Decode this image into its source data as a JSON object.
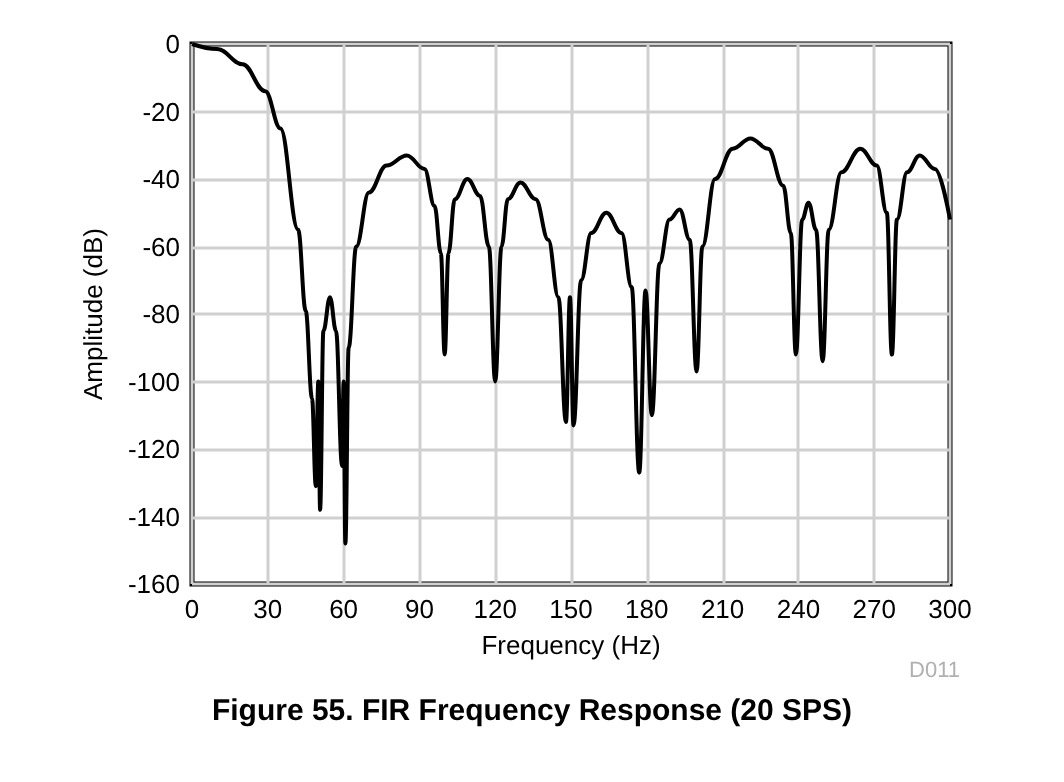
{
  "chart_data": {
    "type": "line",
    "title": "Figure 55. FIR Frequency Response (20 SPS)",
    "xlabel": "Frequency (Hz)",
    "ylabel": "Amplitude (dB)",
    "annotations": [
      "D011"
    ],
    "x": [
      0,
      10,
      20,
      29,
      35,
      42,
      45,
      47.5,
      49,
      50,
      50.7,
      52,
      54.6,
      57,
      59.4,
      60,
      60.7,
      62,
      65,
      70,
      77,
      85,
      92,
      96,
      98.5,
      100,
      101.5,
      104,
      109,
      114,
      117.5,
      120,
      122.5,
      125,
      130,
      136,
      141,
      145,
      148,
      149.6,
      151,
      154,
      158,
      164,
      170,
      174,
      177,
      179.5,
      182,
      185,
      189,
      193,
      197,
      199.7,
      202,
      207,
      214,
      221,
      228,
      234,
      237,
      239,
      241.5,
      244,
      247,
      249.6,
      252,
      257,
      264.5,
      271,
      275,
      277,
      279,
      283,
      288,
      294,
      300
    ],
    "series": [
      {
        "color": "#000000",
        "values": [
          0,
          -1.5,
          -6,
          -14,
          -25,
          -55,
          -79,
          -105,
          -131,
          -100,
          -138,
          -85,
          -75,
          -85,
          -125,
          -100,
          -148,
          -90,
          -60,
          -44,
          -36,
          -33,
          -37,
          -48,
          -62,
          -92,
          -62,
          -46,
          -40,
          -45,
          -60,
          -100,
          -60,
          -46,
          -41,
          -46,
          -58,
          -75,
          -112,
          -75,
          -113,
          -70,
          -56,
          -50,
          -56,
          -72,
          -127,
          -73,
          -110,
          -65,
          -52,
          -49,
          -58,
          -97,
          -60,
          -40,
          -31,
          -28,
          -31,
          -42,
          -56,
          -92,
          -52,
          -47,
          -55,
          -94,
          -55,
          -38,
          -31,
          -36,
          -50,
          -92,
          -52,
          -38,
          -33,
          -37,
          -52
        ]
      }
    ],
    "xlim": [
      0,
      300
    ],
    "xticks": [
      0,
      30,
      60,
      90,
      120,
      150,
      180,
      210,
      240,
      270,
      300
    ],
    "ylim": [
      -160,
      0
    ],
    "yticks": [
      -160,
      -140,
      -120,
      -100,
      -80,
      -60,
      -40,
      -20,
      0
    ],
    "grid": true,
    "marker": "none",
    "line_style": "solid"
  }
}
